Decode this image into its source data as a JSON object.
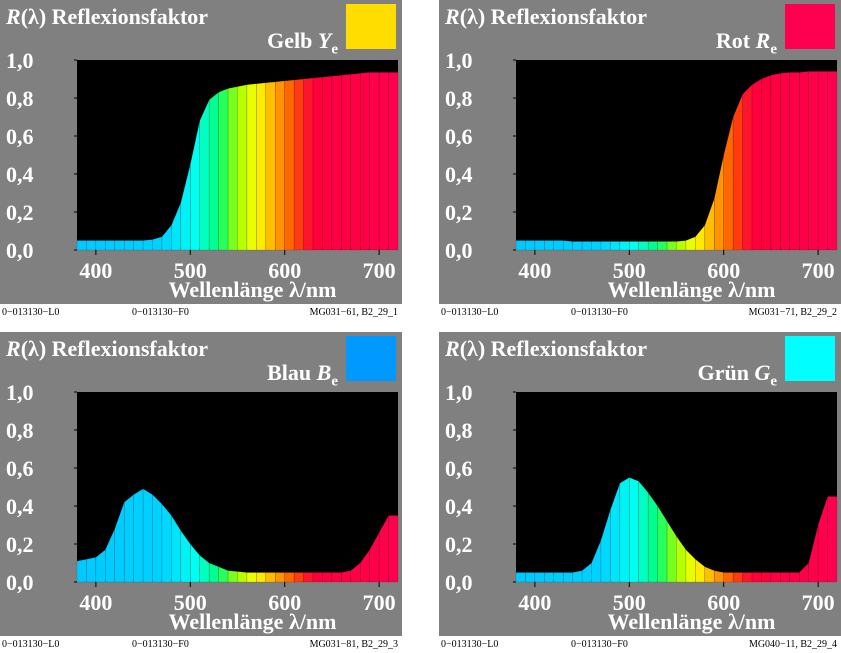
{
  "common": {
    "title_fn": "R",
    "title_arg": "(λ)",
    "title_text": "Reflexionsfaktor",
    "xlabel": "Wellenlänge λ/nm",
    "footer_left": "0−013130−L0",
    "footer_mid": "0−013130−F0"
  },
  "panels": [
    {
      "name": "Gelb",
      "symbol": "Y",
      "subscript": "e",
      "swatch_color": "#ffdd00",
      "footer_right": "MG031−61, B2_29_1"
    },
    {
      "name": "Rot",
      "symbol": "R",
      "subscript": "e",
      "swatch_color": "#ff0050",
      "footer_right": "MG031−71, B2_29_2"
    },
    {
      "name": "Blau",
      "symbol": "B",
      "subscript": "e",
      "swatch_color": "#0099ff",
      "footer_right": "MG031−81, B2_29_3"
    },
    {
      "name": "Grün",
      "symbol": "G",
      "subscript": "e",
      "swatch_color": "#00ffff",
      "footer_right": "MG040−11, B2_29_4"
    }
  ],
  "chart_data": [
    {
      "type": "area",
      "title": "R(λ) Reflexionsfaktor Gelb Ye",
      "xlabel": "Wellenlänge λ/nm",
      "xlim": [
        380,
        720
      ],
      "ylim": [
        0,
        1
      ],
      "xticks": [
        400,
        500,
        600,
        700
      ],
      "yticks": [
        "0,0",
        "0,2",
        "0,4",
        "0,6",
        "0,8",
        "1,0"
      ],
      "x": [
        380,
        390,
        400,
        410,
        420,
        430,
        440,
        450,
        460,
        470,
        480,
        490,
        500,
        510,
        520,
        530,
        540,
        550,
        560,
        570,
        580,
        590,
        600,
        610,
        620,
        630,
        640,
        650,
        660,
        670,
        680,
        690,
        700,
        710
      ],
      "y": [
        0.05,
        0.05,
        0.05,
        0.05,
        0.05,
        0.05,
        0.05,
        0.05,
        0.055,
        0.07,
        0.13,
        0.25,
        0.45,
        0.68,
        0.79,
        0.83,
        0.85,
        0.86,
        0.87,
        0.875,
        0.88,
        0.885,
        0.89,
        0.895,
        0.9,
        0.905,
        0.91,
        0.915,
        0.92,
        0.925,
        0.93,
        0.935,
        0.935,
        0.935
      ]
    },
    {
      "type": "area",
      "title": "R(λ) Reflexionsfaktor Rot Re",
      "xlabel": "Wellenlänge λ/nm",
      "xlim": [
        380,
        720
      ],
      "ylim": [
        0,
        1
      ],
      "xticks": [
        400,
        500,
        600,
        700
      ],
      "yticks": [
        "0,0",
        "0,2",
        "0,4",
        "0,6",
        "0,8",
        "1,0"
      ],
      "x": [
        380,
        390,
        400,
        410,
        420,
        430,
        440,
        450,
        460,
        470,
        480,
        490,
        500,
        510,
        520,
        530,
        540,
        550,
        560,
        570,
        580,
        590,
        600,
        610,
        620,
        630,
        640,
        650,
        660,
        670,
        680,
        690,
        700,
        710
      ],
      "y": [
        0.05,
        0.05,
        0.05,
        0.05,
        0.05,
        0.05,
        0.045,
        0.045,
        0.045,
        0.045,
        0.045,
        0.045,
        0.045,
        0.045,
        0.045,
        0.045,
        0.045,
        0.045,
        0.05,
        0.07,
        0.13,
        0.27,
        0.5,
        0.7,
        0.82,
        0.87,
        0.9,
        0.92,
        0.93,
        0.935,
        0.935,
        0.94,
        0.94,
        0.94
      ]
    },
    {
      "type": "area",
      "title": "R(λ) Reflexionsfaktor Blau Be",
      "xlabel": "Wellenlänge λ/nm",
      "xlim": [
        380,
        720
      ],
      "ylim": [
        0,
        1
      ],
      "xticks": [
        400,
        500,
        600,
        700
      ],
      "yticks": [
        "0,0",
        "0,2",
        "0,4",
        "0,6",
        "0,8",
        "1,0"
      ],
      "x": [
        380,
        390,
        400,
        410,
        420,
        430,
        440,
        450,
        460,
        470,
        480,
        490,
        500,
        510,
        520,
        530,
        540,
        550,
        560,
        570,
        580,
        590,
        600,
        610,
        620,
        630,
        640,
        650,
        660,
        670,
        680,
        690,
        700,
        710
      ],
      "y": [
        0.11,
        0.12,
        0.13,
        0.17,
        0.28,
        0.42,
        0.46,
        0.49,
        0.46,
        0.41,
        0.35,
        0.27,
        0.2,
        0.14,
        0.1,
        0.08,
        0.06,
        0.055,
        0.05,
        0.05,
        0.05,
        0.05,
        0.05,
        0.05,
        0.05,
        0.05,
        0.05,
        0.05,
        0.05,
        0.06,
        0.1,
        0.17,
        0.26,
        0.35
      ]
    },
    {
      "type": "area",
      "title": "R(λ) Reflexionsfaktor Grün Ge",
      "xlabel": "Wellenlänge λ/nm",
      "xlim": [
        380,
        720
      ],
      "ylim": [
        0,
        1
      ],
      "xticks": [
        400,
        500,
        600,
        700
      ],
      "yticks": [
        "0,0",
        "0,2",
        "0,4",
        "0,6",
        "0,8",
        "1,0"
      ],
      "x": [
        380,
        390,
        400,
        410,
        420,
        430,
        440,
        450,
        460,
        470,
        480,
        490,
        500,
        510,
        520,
        530,
        540,
        550,
        560,
        570,
        580,
        590,
        600,
        610,
        620,
        630,
        640,
        650,
        660,
        670,
        680,
        690,
        700,
        710
      ],
      "y": [
        0.05,
        0.05,
        0.05,
        0.05,
        0.05,
        0.05,
        0.05,
        0.06,
        0.1,
        0.22,
        0.38,
        0.52,
        0.55,
        0.53,
        0.47,
        0.4,
        0.32,
        0.24,
        0.17,
        0.12,
        0.08,
        0.06,
        0.05,
        0.05,
        0.05,
        0.05,
        0.05,
        0.05,
        0.05,
        0.05,
        0.05,
        0.1,
        0.3,
        0.45
      ]
    }
  ]
}
